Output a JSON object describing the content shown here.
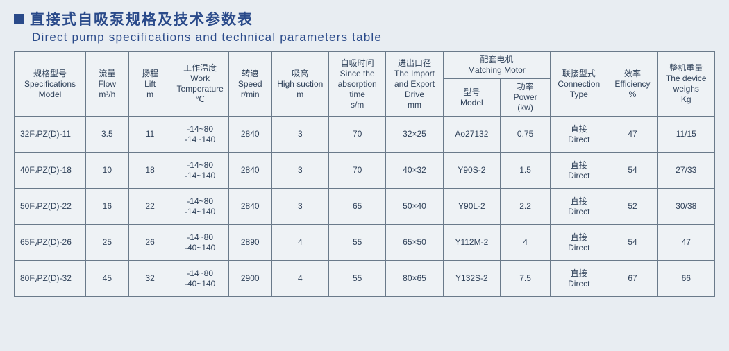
{
  "title": {
    "zh": "直接式自吸泵规格及技术参数表",
    "en": "Direct pump specifications and technical parameters table"
  },
  "headers": {
    "model": "规格型号\nSpecifications\nModel",
    "flow": "流量\nFlow\nm³/h",
    "lift": "扬程\nLift\nm",
    "temp": "工作温度\nWork\nTemperature\n℃",
    "speed": "转速\nSpeed\nr/min",
    "suction": "吸高\nHigh suction\nm",
    "selftime": "自吸时间\nSince the\nabsorption\ntime\ns/m",
    "drive": "进出口径\nThe Import\nand Export\nDrive\nmm",
    "motor_group": "配套电机\nMatching Motor",
    "motor_model": "型号\nModel",
    "motor_power": "功率\nPower\n(kw)",
    "conn": "联接型式\nConnection\nType",
    "eff": "效率\nEfficiency\n%",
    "weight": "整机重量\nThe device\nweighs\nKg"
  },
  "rows": [
    {
      "model": "32FᵥPZ(D)-11",
      "flow": "3.5",
      "lift": "11",
      "temp": "-14~80\n-14~140",
      "speed": "2840",
      "suction": "3",
      "selftime": "70",
      "drive": "32×25",
      "motor_model": "Ao27132",
      "motor_power": "0.75",
      "conn": "直接\nDirect",
      "eff": "47",
      "weight": "11/15"
    },
    {
      "model": "40FᵥPZ(D)-18",
      "flow": "10",
      "lift": "18",
      "temp": "-14~80\n-14~140",
      "speed": "2840",
      "suction": "3",
      "selftime": "70",
      "drive": "40×32",
      "motor_model": "Y90S-2",
      "motor_power": "1.5",
      "conn": "直接\nDirect",
      "eff": "54",
      "weight": "27/33"
    },
    {
      "model": "50FᵥPZ(D)-22",
      "flow": "16",
      "lift": "22",
      "temp": "-14~80\n-14~140",
      "speed": "2840",
      "suction": "3",
      "selftime": "65",
      "drive": "50×40",
      "motor_model": "Y90L-2",
      "motor_power": "2.2",
      "conn": "直接\nDirect",
      "eff": "52",
      "weight": "30/38"
    },
    {
      "model": "65FᵥPZ(D)-26",
      "flow": "25",
      "lift": "26",
      "temp": "-14~80\n-40~140",
      "speed": "2890",
      "suction": "4",
      "selftime": "55",
      "drive": "65×50",
      "motor_model": "Y112M-2",
      "motor_power": "4",
      "conn": "直接\nDirect",
      "eff": "54",
      "weight": "47"
    },
    {
      "model": "80FᵥPZ(D)-32",
      "flow": "45",
      "lift": "32",
      "temp": "-14~80\n-40~140",
      "speed": "2900",
      "suction": "4",
      "selftime": "55",
      "drive": "80×65",
      "motor_model": "Y132S-2",
      "motor_power": "7.5",
      "conn": "直接\nDirect",
      "eff": "67",
      "weight": "66"
    }
  ],
  "col_widths_pct": [
    10,
    6,
    6,
    8,
    6,
    8,
    8,
    8,
    8,
    7,
    8,
    7,
    8
  ]
}
